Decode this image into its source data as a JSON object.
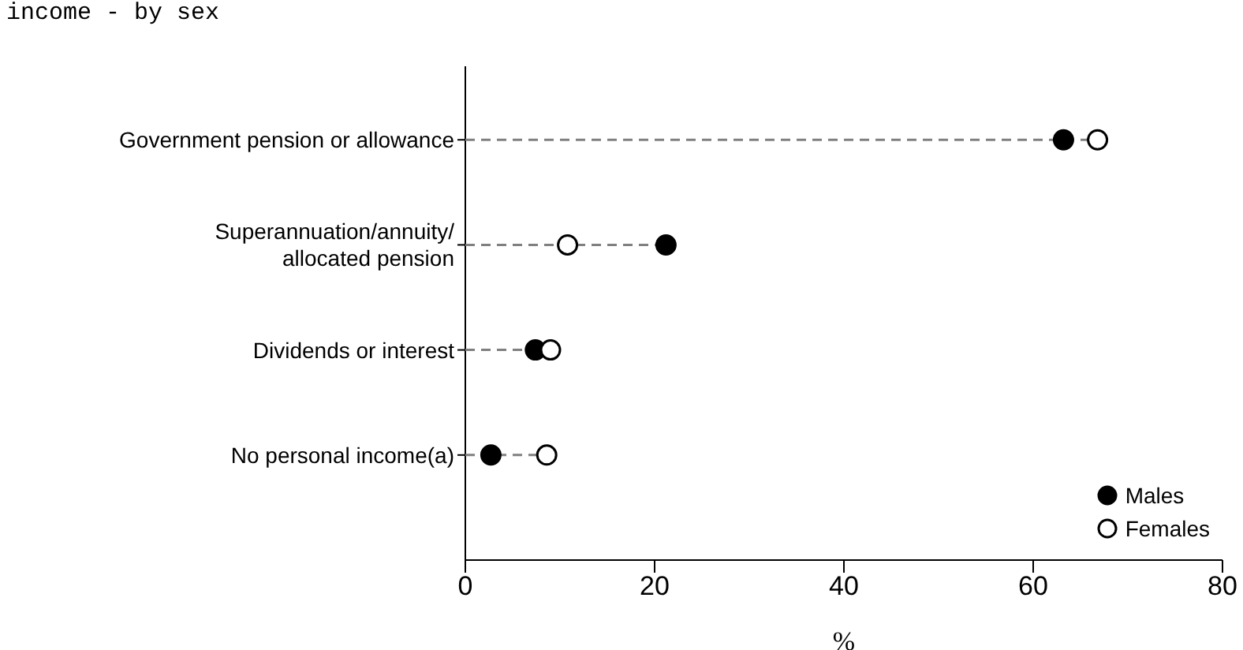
{
  "chart_data": {
    "type": "lollipop",
    "title": "income - by sex",
    "xlabel": "%",
    "categories": [
      "Government pension or allowance",
      "Superannuation/annuity/allocated pension",
      "Dividends or interest",
      "No personal income(a)"
    ],
    "series": [
      {
        "name": "Males",
        "color": "#000000",
        "values": [
          63.2,
          21.2,
          7.4,
          2.7
        ]
      },
      {
        "name": "Females",
        "color": "#ffffff",
        "values": [
          66.8,
          10.8,
          9,
          8.6
        ]
      }
    ],
    "xlim": [
      0,
      80
    ],
    "xticks": [
      0,
      20,
      40,
      60,
      80
    ],
    "orientation": "horizontal",
    "grid": false,
    "legend": "bottom right",
    "marker": "circle",
    "line_style": "dashed"
  }
}
